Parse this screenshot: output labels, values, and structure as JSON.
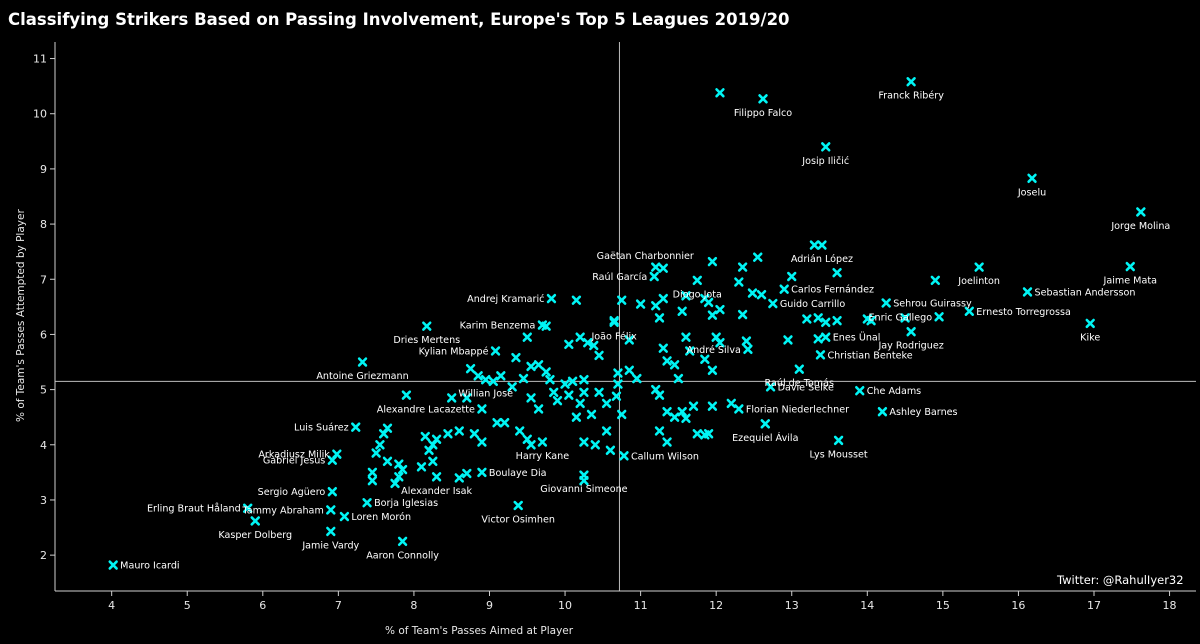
{
  "chart_data": {
    "type": "scatter",
    "title": "Classifying Strikers Based on Passing Involvement, Europe's Top 5 Leagues 2019/20",
    "xlabel": "% of Team's Passes Aimed at Player",
    "ylabel": "% of Team's Passes Attempted by Player",
    "xlim": [
      3.25,
      18.35
    ],
    "ylim": [
      1.35,
      11.3
    ],
    "x_ticks": [
      4,
      5,
      6,
      7,
      8,
      9,
      10,
      11,
      12,
      13,
      14,
      15,
      16,
      17,
      18
    ],
    "y_ticks": [
      2,
      3,
      4,
      5,
      6,
      7,
      8,
      9,
      10,
      11
    ],
    "reference_lines": {
      "x": 10.72,
      "y": 5.15
    },
    "marker_color": "#00f5f5",
    "credit": "Twitter: @RahulIyer32",
    "grid": false,
    "labeled_points": [
      {
        "name": "Franck Ribéry",
        "x": 14.58,
        "y": 10.58
      },
      {
        "name": "Filippo Falco",
        "x": 12.62,
        "y": 10.27
      },
      {
        "name": "Josip Iličić",
        "x": 13.45,
        "y": 9.4
      },
      {
        "name": "Joselu",
        "x": 16.18,
        "y": 8.83
      },
      {
        "name": "Jorge Molina",
        "x": 17.62,
        "y": 8.22
      },
      {
        "name": "Gaëtan Charbonnier",
        "x": 11.3,
        "y": 7.2
      },
      {
        "name": "Adrián López",
        "x": 13.4,
        "y": 7.62
      },
      {
        "name": "Raúl García",
        "x": 11.18,
        "y": 7.05
      },
      {
        "name": "Diogo Jota",
        "x": 11.75,
        "y": 6.98
      },
      {
        "name": "Joelinton",
        "x": 15.48,
        "y": 7.22
      },
      {
        "name": "Jaime Mata",
        "x": 17.48,
        "y": 7.23
      },
      {
        "name": "Carlos Fernández",
        "x": 12.9,
        "y": 6.82
      },
      {
        "name": "Sebastian Andersson",
        "x": 16.12,
        "y": 6.77
      },
      {
        "name": "Andrej Kramarić",
        "x": 9.82,
        "y": 6.65
      },
      {
        "name": "Guido Carrillo",
        "x": 12.75,
        "y": 6.56
      },
      {
        "name": "Sehrou Guirassy",
        "x": 14.25,
        "y": 6.57
      },
      {
        "name": "Ernesto Torregrossa",
        "x": 15.35,
        "y": 6.42
      },
      {
        "name": "Enric Gallego",
        "x": 14.95,
        "y": 6.32
      },
      {
        "name": "Kike",
        "x": 16.95,
        "y": 6.2
      },
      {
        "name": "Karim Benzema",
        "x": 9.7,
        "y": 6.17
      },
      {
        "name": "Dries Mertens",
        "x": 8.17,
        "y": 6.15
      },
      {
        "name": "João Félix",
        "x": 10.65,
        "y": 6.22
      },
      {
        "name": "Enes Ünal",
        "x": 13.45,
        "y": 5.95
      },
      {
        "name": "Jay Rodriguez",
        "x": 14.58,
        "y": 6.05
      },
      {
        "name": "Kylian Mbappé",
        "x": 9.08,
        "y": 5.7
      },
      {
        "name": "André Silva",
        "x": 12.42,
        "y": 5.73
      },
      {
        "name": "Christian Benteke",
        "x": 13.38,
        "y": 5.63
      },
      {
        "name": "Antoine Griezmann",
        "x": 7.32,
        "y": 5.5
      },
      {
        "name": "Raúl de Tomás",
        "x": 13.1,
        "y": 5.37
      },
      {
        "name": "Willian José",
        "x": 8.95,
        "y": 5.18
      },
      {
        "name": "Davie Selke",
        "x": 12.72,
        "y": 5.05
      },
      {
        "name": "Che Adams",
        "x": 13.9,
        "y": 4.98
      },
      {
        "name": "Alexandre Lacazette",
        "x": 8.9,
        "y": 4.65
      },
      {
        "name": "Florian Niederlechner",
        "x": 12.3,
        "y": 4.65
      },
      {
        "name": "Ashley Barnes",
        "x": 14.2,
        "y": 4.6
      },
      {
        "name": "Luis Suárez",
        "x": 7.23,
        "y": 4.32
      },
      {
        "name": "Ezequiel Ávila",
        "x": 12.65,
        "y": 4.38
      },
      {
        "name": "Arkadiusz Milik",
        "x": 6.98,
        "y": 3.83
      },
      {
        "name": "Lys Mousset",
        "x": 13.62,
        "y": 4.08
      },
      {
        "name": "Harry Kane",
        "x": 9.7,
        "y": 4.05
      },
      {
        "name": "Callum Wilson",
        "x": 10.78,
        "y": 3.8
      },
      {
        "name": "Gabriel Jesus",
        "x": 6.92,
        "y": 3.72
      },
      {
        "name": "Boulaye Dia",
        "x": 8.9,
        "y": 3.5
      },
      {
        "name": "Giovanni Simeone",
        "x": 10.25,
        "y": 3.45
      },
      {
        "name": "Alexander Isak",
        "x": 8.3,
        "y": 3.42
      },
      {
        "name": "Sergio Agüero",
        "x": 6.92,
        "y": 3.15
      },
      {
        "name": "Borja Iglesias",
        "x": 7.38,
        "y": 2.95
      },
      {
        "name": "Victor Osimhen",
        "x": 9.38,
        "y": 2.9
      },
      {
        "name": "Erling Braut Håland",
        "x": 5.8,
        "y": 2.85
      },
      {
        "name": "Tammy Abraham",
        "x": 6.9,
        "y": 2.82
      },
      {
        "name": "Loren Morón",
        "x": 7.08,
        "y": 2.7
      },
      {
        "name": "Kasper Dolberg",
        "x": 5.9,
        "y": 2.62
      },
      {
        "name": "Jamie Vardy",
        "x": 6.9,
        "y": 2.43
      },
      {
        "name": "Aaron Connolly",
        "x": 7.85,
        "y": 2.25
      },
      {
        "name": "Mauro Icardi",
        "x": 4.02,
        "y": 1.82
      }
    ],
    "unlabeled_points": [
      [
        12.05,
        10.38
      ],
      [
        11.2,
        7.22
      ],
      [
        11.95,
        7.32
      ],
      [
        12.35,
        7.22
      ],
      [
        12.55,
        7.4
      ],
      [
        12.3,
        6.95
      ],
      [
        13.0,
        7.05
      ],
      [
        13.6,
        7.12
      ],
      [
        13.3,
        7.62
      ],
      [
        14.9,
        6.98
      ],
      [
        11.3,
        6.65
      ],
      [
        11.6,
        6.7
      ],
      [
        11.85,
        6.65
      ],
      [
        11.9,
        6.58
      ],
      [
        12.6,
        6.72
      ],
      [
        12.48,
        6.75
      ],
      [
        10.75,
        6.62
      ],
      [
        10.15,
        6.62
      ],
      [
        11.0,
        6.55
      ],
      [
        11.2,
        6.52
      ],
      [
        12.05,
        6.45
      ],
      [
        11.55,
        6.42
      ],
      [
        11.95,
        6.35
      ],
      [
        12.35,
        6.36
      ],
      [
        13.2,
        6.28
      ],
      [
        13.35,
        6.3
      ],
      [
        13.45,
        6.22
      ],
      [
        14.05,
        6.25
      ],
      [
        10.65,
        6.25
      ],
      [
        11.25,
        6.3
      ],
      [
        14.0,
        6.28
      ],
      [
        9.75,
        6.15
      ],
      [
        12.0,
        5.95
      ],
      [
        12.05,
        5.85
      ],
      [
        12.4,
        5.88
      ],
      [
        12.95,
        5.9
      ],
      [
        13.35,
        5.92
      ],
      [
        10.2,
        5.95
      ],
      [
        10.3,
        5.85
      ],
      [
        10.38,
        5.8
      ],
      [
        10.85,
        5.9
      ],
      [
        11.3,
        5.75
      ],
      [
        11.6,
        5.95
      ],
      [
        11.35,
        5.52
      ],
      [
        11.45,
        5.45
      ],
      [
        11.65,
        5.7
      ],
      [
        11.85,
        5.55
      ],
      [
        11.95,
        5.35
      ],
      [
        11.5,
        5.2
      ],
      [
        10.7,
        5.3
      ],
      [
        10.85,
        5.35
      ],
      [
        10.95,
        5.2
      ],
      [
        10.45,
        5.62
      ],
      [
        10.05,
        5.82
      ],
      [
        9.55,
        5.42
      ],
      [
        9.5,
        5.95
      ],
      [
        9.35,
        5.58
      ],
      [
        9.65,
        5.45
      ],
      [
        9.15,
        5.25
      ],
      [
        9.05,
        5.15
      ],
      [
        8.85,
        5.25
      ],
      [
        8.75,
        5.38
      ],
      [
        9.3,
        5.05
      ],
      [
        9.45,
        5.2
      ],
      [
        9.75,
        5.32
      ],
      [
        10.0,
        5.1
      ],
      [
        10.1,
        5.15
      ],
      [
        10.25,
        5.18
      ],
      [
        10.25,
        4.95
      ],
      [
        10.05,
        4.9
      ],
      [
        9.8,
        5.18
      ],
      [
        9.9,
        4.8
      ],
      [
        9.85,
        4.95
      ],
      [
        9.55,
        4.85
      ],
      [
        9.65,
        4.65
      ],
      [
        10.2,
        4.75
      ],
      [
        10.15,
        4.5
      ],
      [
        10.35,
        4.55
      ],
      [
        10.45,
        4.95
      ],
      [
        10.55,
        4.75
      ],
      [
        10.75,
        4.55
      ],
      [
        10.55,
        4.25
      ],
      [
        10.68,
        4.88
      ],
      [
        10.7,
        5.1
      ],
      [
        11.2,
        5.0
      ],
      [
        11.25,
        4.9
      ],
      [
        11.35,
        4.6
      ],
      [
        11.45,
        4.5
      ],
      [
        11.55,
        4.6
      ],
      [
        11.6,
        4.48
      ],
      [
        11.7,
        4.7
      ],
      [
        11.75,
        4.2
      ],
      [
        11.9,
        4.2
      ],
      [
        11.95,
        4.7
      ],
      [
        12.2,
        4.75
      ],
      [
        11.85,
        4.18
      ],
      [
        11.35,
        4.05
      ],
      [
        11.25,
        4.25
      ],
      [
        10.25,
        4.05
      ],
      [
        10.4,
        4.0
      ],
      [
        10.6,
        3.9
      ],
      [
        9.55,
        4.0
      ],
      [
        9.5,
        4.1
      ],
      [
        9.4,
        4.25
      ],
      [
        9.2,
        4.4
      ],
      [
        9.1,
        4.4
      ],
      [
        8.9,
        4.05
      ],
      [
        8.8,
        4.2
      ],
      [
        8.6,
        4.25
      ],
      [
        8.45,
        4.2
      ],
      [
        8.3,
        4.1
      ],
      [
        8.25,
        4.0
      ],
      [
        8.15,
        4.15
      ],
      [
        8.2,
        3.9
      ],
      [
        8.25,
        3.7
      ],
      [
        8.1,
        3.6
      ],
      [
        8.6,
        3.4
      ],
      [
        8.7,
        3.48
      ],
      [
        7.85,
        3.55
      ],
      [
        7.8,
        3.42
      ],
      [
        7.75,
        3.3
      ],
      [
        7.45,
        3.5
      ],
      [
        7.45,
        3.35
      ],
      [
        7.5,
        3.85
      ],
      [
        7.55,
        4.0
      ],
      [
        7.6,
        4.2
      ],
      [
        7.65,
        4.3
      ],
      [
        7.65,
        3.7
      ],
      [
        7.8,
        3.65
      ],
      [
        7.9,
        4.9
      ],
      [
        8.5,
        4.85
      ],
      [
        8.7,
        4.85
      ],
      [
        10.25,
        3.35
      ],
      [
        13.6,
        6.25
      ],
      [
        14.5,
        6.3
      ]
    ]
  }
}
